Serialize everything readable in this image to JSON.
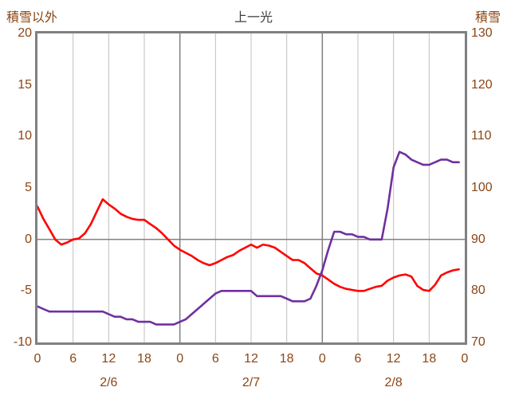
{
  "header": {
    "left_axis_title": "積雪以外",
    "title": "上一光",
    "right_axis_title": "積雪"
  },
  "colors": {
    "red_line": "#FF0000",
    "purple_line": "#7030A0",
    "grid_minor": "#BFBFBF",
    "grid_major": "#808080",
    "frame": "#808080",
    "tick_text": "#8B4513",
    "title_text": "#404040",
    "background": "#FFFFFF"
  },
  "chart_data": {
    "type": "line",
    "title": "上一光",
    "x_unit": "hour",
    "x_range": [
      0,
      72
    ],
    "x_start": 0,
    "x_step": 1,
    "left_axis": {
      "label": "積雪以外",
      "min": -10,
      "max": 20,
      "ticks": [
        20,
        15,
        10,
        5,
        0,
        -5,
        -10
      ]
    },
    "right_axis": {
      "label": "積雪",
      "min": 70,
      "max": 130,
      "ticks": [
        130,
        120,
        110,
        100,
        90,
        80,
        70
      ]
    },
    "x_ticks": [
      {
        "hour": 0,
        "label": "0"
      },
      {
        "hour": 6,
        "label": "6"
      },
      {
        "hour": 12,
        "label": "12"
      },
      {
        "hour": 18,
        "label": "18"
      },
      {
        "hour": 24,
        "label": "0"
      },
      {
        "hour": 30,
        "label": "6"
      },
      {
        "hour": 36,
        "label": "12"
      },
      {
        "hour": 42,
        "label": "18"
      },
      {
        "hour": 48,
        "label": "0"
      },
      {
        "hour": 54,
        "label": "6"
      },
      {
        "hour": 60,
        "label": "12"
      },
      {
        "hour": 66,
        "label": "18"
      },
      {
        "hour": 72,
        "label": "0"
      }
    ],
    "day_labels": [
      {
        "hour": 12,
        "label": "2/6"
      },
      {
        "hour": 36,
        "label": "2/7"
      },
      {
        "hour": 60,
        "label": "2/8"
      }
    ],
    "gridlines": {
      "vertical_minor_hours": [
        6,
        12,
        18,
        30,
        36,
        42,
        54,
        60,
        66
      ],
      "vertical_major_hours": [
        24,
        48
      ],
      "horizontal_left_values": [
        0
      ]
    },
    "series": [
      {
        "id": "other-than-snow",
        "name": "積雪以外",
        "axis": "left",
        "color": "#FF0000",
        "values": [
          3.2,
          2.0,
          1.0,
          0.0,
          -0.5,
          -0.3,
          0.0,
          0.1,
          0.6,
          1.5,
          2.7,
          3.9,
          3.4,
          3.0,
          2.5,
          2.2,
          2.0,
          1.9,
          1.9,
          1.5,
          1.1,
          0.6,
          0.0,
          -0.6,
          -1.0,
          -1.3,
          -1.6,
          -2.0,
          -2.3,
          -2.5,
          -2.3,
          -2.0,
          -1.7,
          -1.5,
          -1.1,
          -0.8,
          -0.5,
          -0.8,
          -0.5,
          -0.6,
          -0.8,
          -1.2,
          -1.6,
          -2.0,
          -2.0,
          -2.3,
          -2.8,
          -3.3,
          -3.5,
          -3.9,
          -4.3,
          -4.6,
          -4.8,
          -4.9,
          -5.0,
          -5.0,
          -4.8,
          -4.6,
          -4.5,
          -4.0,
          -3.7,
          -3.5,
          -3.4,
          -3.6,
          -4.5,
          -4.9,
          -5.0,
          -4.4,
          -3.5,
          -3.2,
          -3.0,
          -2.9
        ]
      },
      {
        "id": "snow-depth",
        "name": "積雪",
        "axis": "right",
        "color": "#7030A0",
        "values": [
          77,
          76.5,
          76,
          76,
          76,
          76,
          76,
          76,
          76,
          76,
          76,
          76,
          75.5,
          75,
          75,
          74.5,
          74.5,
          74,
          74,
          74,
          73.5,
          73.5,
          73.5,
          73.5,
          74,
          74.5,
          75.5,
          76.5,
          77.5,
          78.5,
          79.5,
          80,
          80,
          80,
          80,
          80,
          80,
          79,
          79,
          79,
          79,
          79,
          78.5,
          78,
          78,
          78,
          78.5,
          81,
          84,
          88,
          91.5,
          91.5,
          91,
          91,
          90.5,
          90.5,
          90,
          90,
          90,
          96,
          104,
          107,
          106.5,
          105.5,
          105,
          104.5,
          104.5,
          105,
          105.5,
          105.5,
          105,
          105
        ]
      }
    ]
  }
}
